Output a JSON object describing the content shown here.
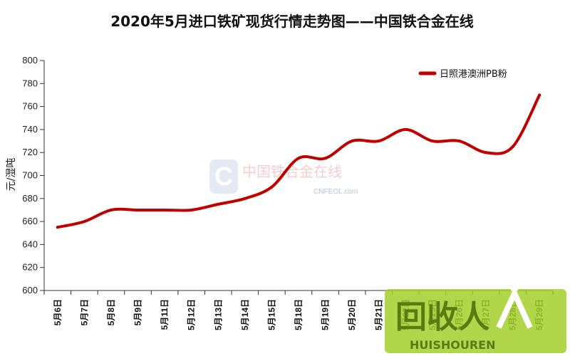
{
  "colors": {
    "series": "#c00000",
    "axis": "#333333",
    "grid": "#d9d9d9",
    "logo": "#8cb81c"
  },
  "watermark": {
    "cn": "中国铁合金在线",
    "en": "CNFEOL.com"
  },
  "site_logo": {
    "cn": "回收人",
    "en": "HUISHOUREN",
    "icon": "recycle-person-icon"
  },
  "chart_data": {
    "type": "line",
    "title": "2020年5月进口铁矿现货行情走势图——中国铁合金在线",
    "xlabel": "",
    "ylabel": "元/湿吨",
    "ylim": [
      600,
      800
    ],
    "yticks": [
      600,
      620,
      640,
      660,
      680,
      700,
      720,
      740,
      760,
      780,
      800
    ],
    "grid": false,
    "legend_position": "top-right",
    "categories": [
      "5月6日",
      "5月7日",
      "5月8日",
      "5月9日",
      "5月11日",
      "5月12日",
      "5月13日",
      "5月14日",
      "5月15日",
      "5月18日",
      "5月19日",
      "5月20日",
      "5月21日",
      "5月22日",
      "5月25日",
      "5月26日",
      "5月27日",
      "5月28日",
      "5月29日"
    ],
    "series": [
      {
        "name": "日照港澳洲PB粉",
        "values": [
          655,
          660,
          670,
          670,
          670,
          670,
          675,
          680,
          690,
          715,
          715,
          730,
          730,
          740,
          730,
          730,
          720,
          725,
          770
        ]
      }
    ]
  }
}
